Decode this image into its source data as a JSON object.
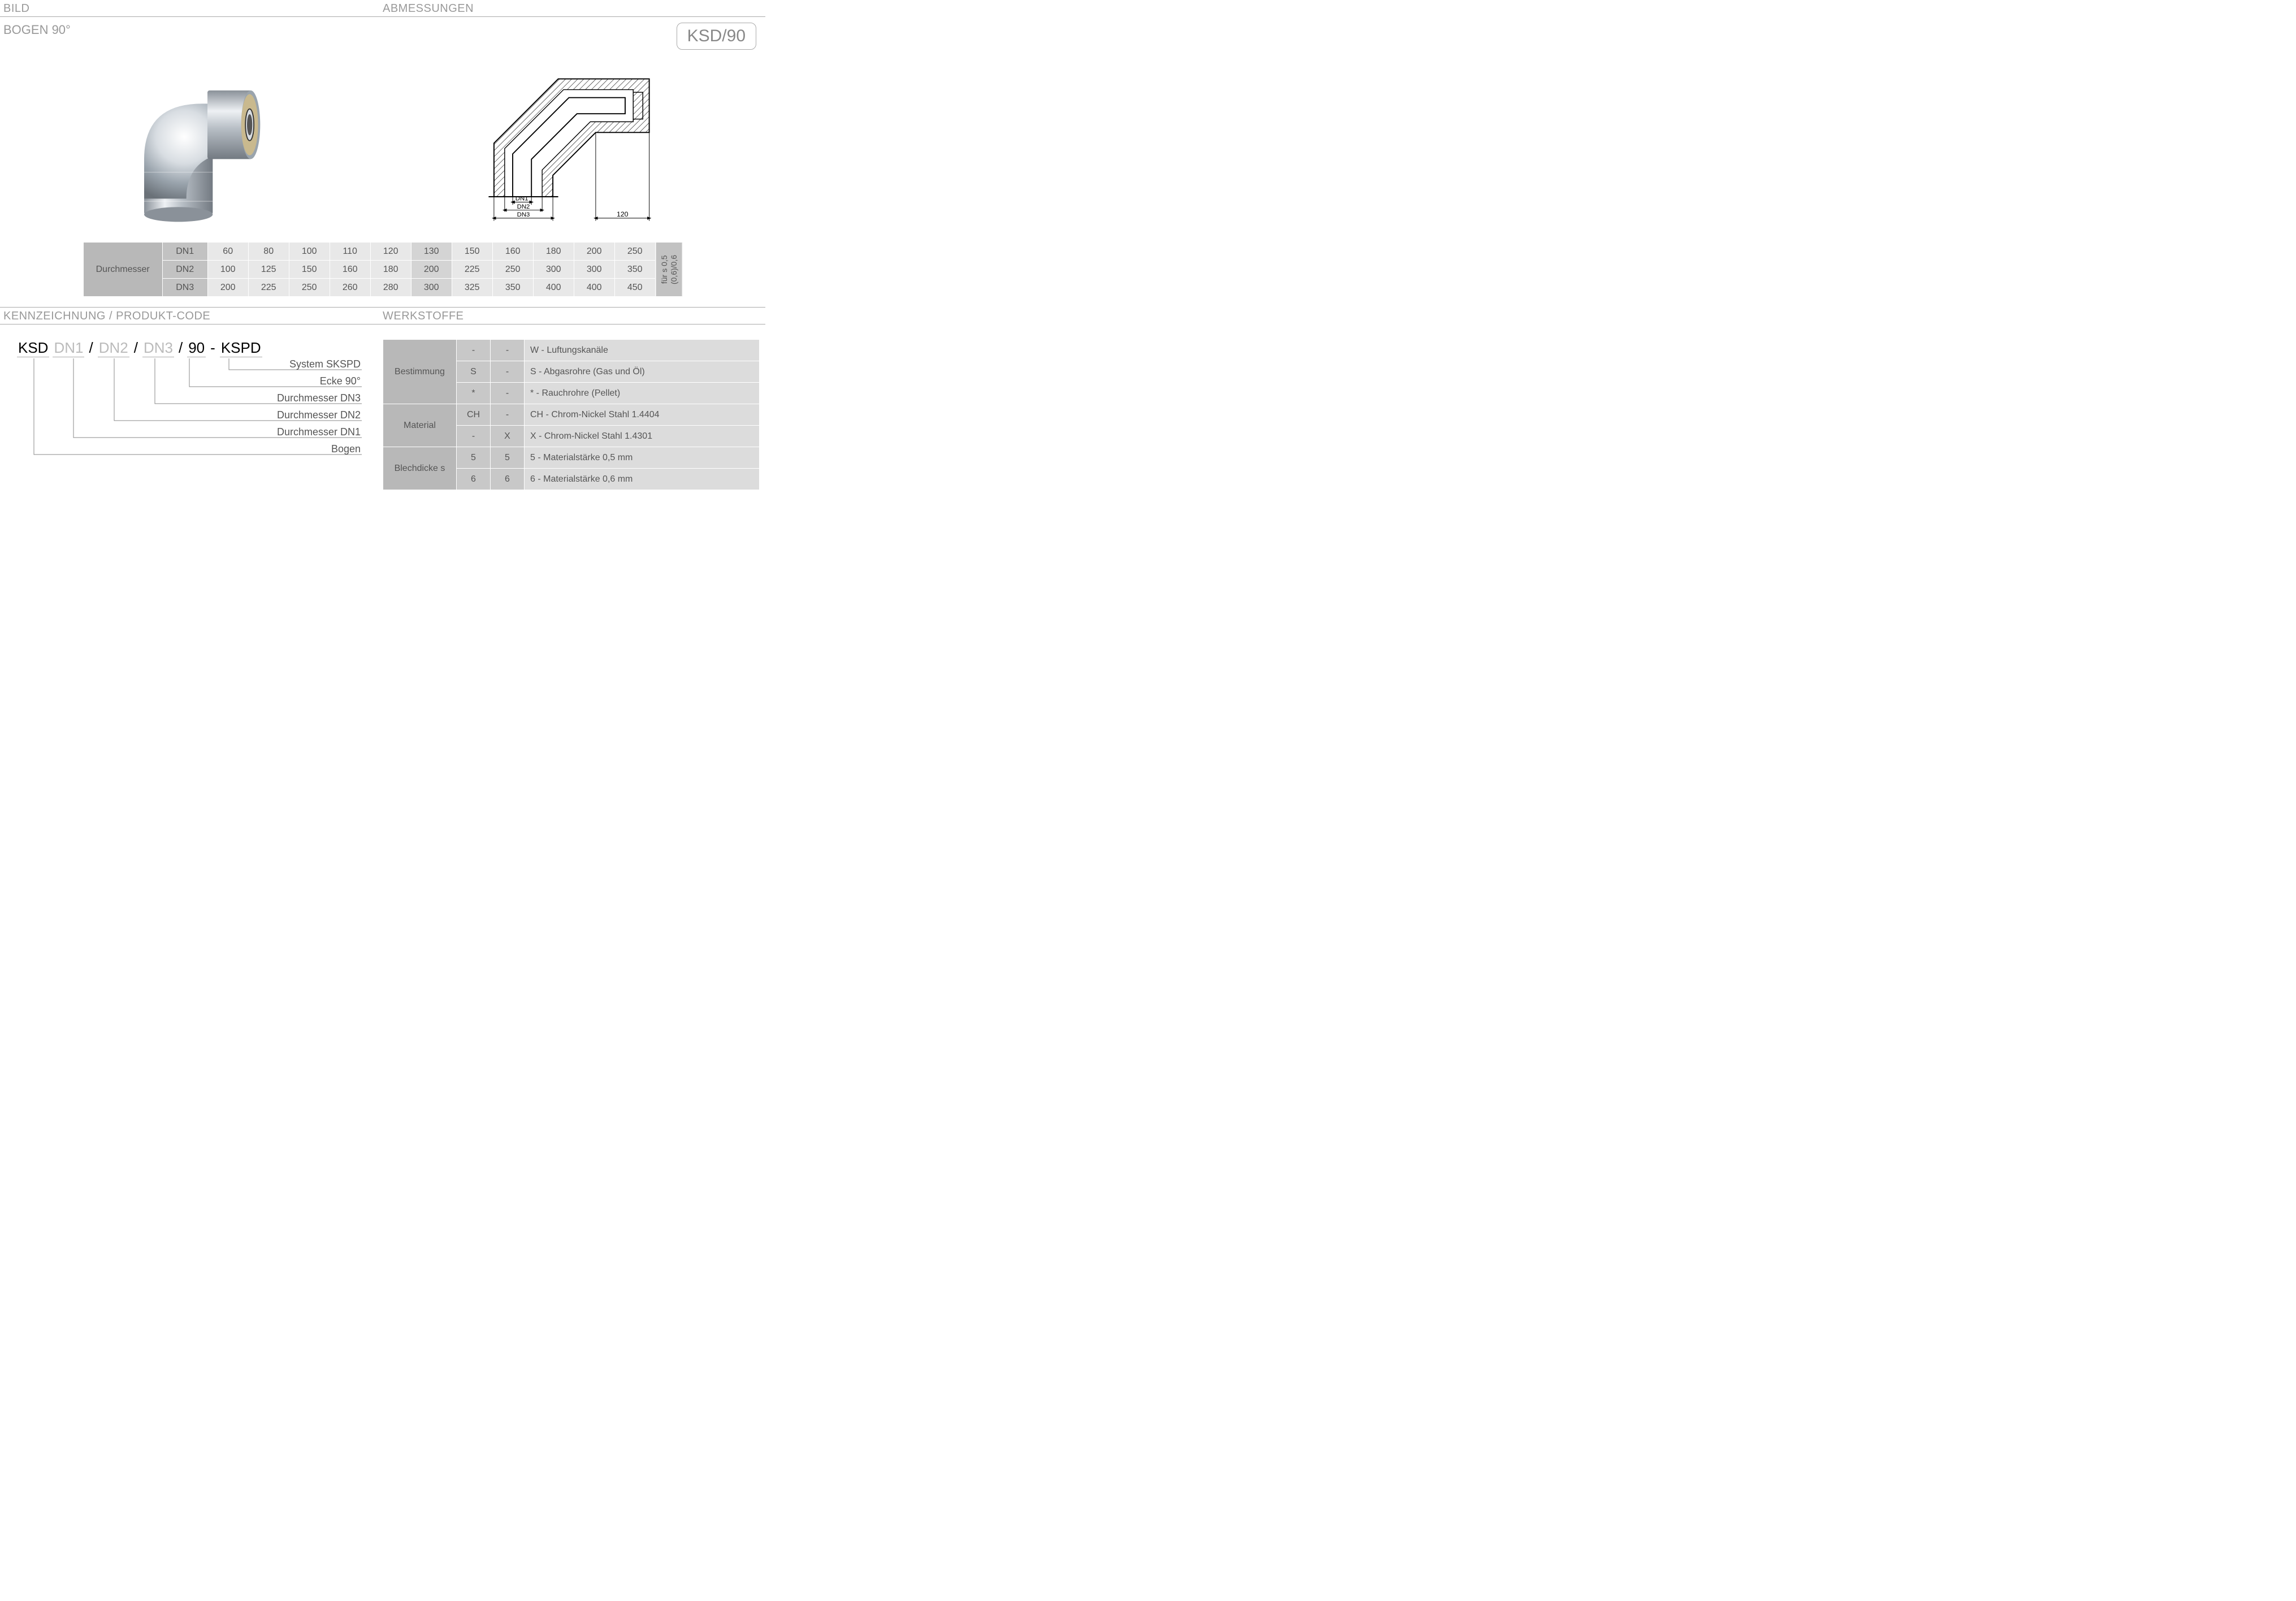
{
  "headers": {
    "bild": "BILD",
    "abmessungen": "ABMESSUNGEN",
    "kennzeichnung": "KENNZEICHNUNG  / PRODUKT-CODE",
    "werkstoffe": "WERKSTOFFE"
  },
  "subtitle": "BOGEN 90°",
  "product_box": "KSD/90",
  "tech_drawing": {
    "dn1": "DN1",
    "dn2": "DN2",
    "dn3": "DN3",
    "width_label": "120"
  },
  "diameter_table": {
    "row_header": "Durchmesser",
    "dn_labels": [
      "DN1",
      "DN2",
      "DN3"
    ],
    "columns_shade": [
      "a",
      "a",
      "a",
      "a",
      "a",
      "b",
      "a",
      "a",
      "a",
      "a",
      "a"
    ],
    "rows": [
      [
        "60",
        "80",
        "100",
        "110",
        "120",
        "130",
        "150",
        "160",
        "180",
        "200",
        "250"
      ],
      [
        "100",
        "125",
        "150",
        "160",
        "180",
        "200",
        "225",
        "250",
        "300",
        "300",
        "350"
      ],
      [
        "200",
        "225",
        "250",
        "260",
        "280",
        "300",
        "325",
        "350",
        "400",
        "400",
        "450"
      ]
    ],
    "side_note_line1": "für s 0,5",
    "side_note_line2": "(0,6)/0,6"
  },
  "code_diagram": {
    "segments": [
      {
        "text": "KSD",
        "placeholder": false
      },
      {
        "text": "DN1",
        "placeholder": true
      },
      {
        "text": "DN2",
        "placeholder": true
      },
      {
        "text": "DN3",
        "placeholder": true
      },
      {
        "text": "90",
        "placeholder": false
      },
      {
        "text": "KSPD",
        "placeholder": false
      }
    ],
    "separators": [
      "",
      "/",
      "/",
      "/",
      "-"
    ],
    "legend": [
      "System SKSPD",
      "Ecke 90°",
      "Durchmesser DN3",
      "Durchmesser DN2",
      "Durchmesser DN1",
      "Bogen"
    ]
  },
  "materials_table": {
    "groups": [
      {
        "category": "Bestimmung",
        "rows": [
          {
            "c1": "-",
            "c2": "-",
            "desc": "W - Luftungskanäle"
          },
          {
            "c1": "S",
            "c2": "-",
            "desc": "S - Abgasrohre (Gas und Öl)"
          },
          {
            "c1": "*",
            "c2": "-",
            "desc": "* - Rauchrohre (Pellet)"
          }
        ]
      },
      {
        "category": "Material",
        "rows": [
          {
            "c1": "CH",
            "c2": "-",
            "desc": "CH - Chrom-Nickel Stahl 1.4404"
          },
          {
            "c1": "-",
            "c2": "X",
            "desc": "X - Chrom-Nickel Stahl 1.4301"
          }
        ]
      },
      {
        "category": "Blechdicke s",
        "rows": [
          {
            "c1": "5",
            "c2": "5",
            "desc": "5 - Materialstärke 0,5 mm"
          },
          {
            "c1": "6",
            "c2": "6",
            "desc": "6 - Materialstärke 0,6 mm"
          }
        ]
      }
    ]
  },
  "colors": {
    "header_text": "#999999",
    "border": "#aaaaaa",
    "cell_dark": "#b8b8b8",
    "cell_mid": "#c8c8c8",
    "cell_light": "#dcdcdc",
    "val_a": "#e8e8e8",
    "val_b": "#d4d4d4"
  }
}
